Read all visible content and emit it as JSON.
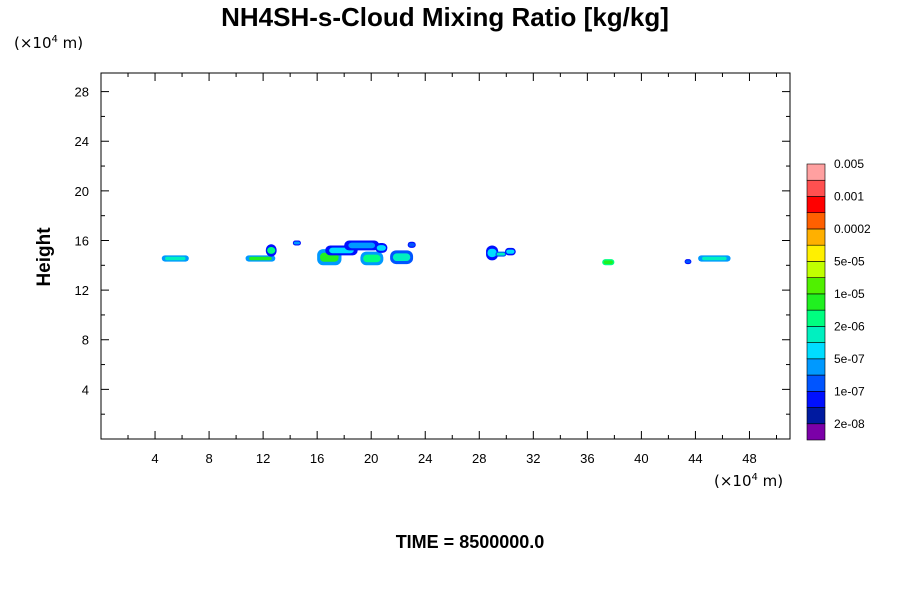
{
  "title": "NH4SH-s-Cloud Mixing Ratio [kg/kg]",
  "y_unit": {
    "prefix": "(×10",
    "exp": "4",
    "suffix": "m)"
  },
  "x_unit": {
    "prefix": "(×10",
    "exp": "4",
    "suffix": "m)"
  },
  "footer": "TIME = 8500000.0",
  "chart_data": {
    "type": "heatmap",
    "title": "NH4SH-s-Cloud Mixing Ratio [kg/kg]",
    "xlabel": "",
    "ylabel": "Height",
    "xlim": [
      0,
      51
    ],
    "ylim": [
      0,
      29.5
    ],
    "x_ticks": [
      4,
      8,
      12,
      16,
      20,
      24,
      28,
      32,
      36,
      40,
      44,
      48
    ],
    "y_ticks": [
      4,
      8,
      12,
      16,
      20,
      24,
      28
    ],
    "grid": false,
    "legend": "colorbar-right",
    "colorbar": {
      "colors": [
        "#7b00a8",
        "#001aa0",
        "#0010ff",
        "#0055ff",
        "#0099ff",
        "#00ddff",
        "#00f0c0",
        "#00ff80",
        "#20f020",
        "#50f000",
        "#c0ff00",
        "#fff000",
        "#ffb000",
        "#ff6000",
        "#ff0000",
        "#ff5050",
        "#ffa0a0"
      ],
      "tick_labels": [
        "2e-08",
        "1e-07",
        "5e-07",
        "2e-06",
        "1e-05",
        "5e-05",
        "0.0002",
        "0.001",
        "0.005"
      ]
    },
    "cloud_patches": [
      {
        "x0": 4.5,
        "x1": 6.5,
        "y0": 14.3,
        "y1": 14.8,
        "colors": [
          "#0099ff",
          "#00f0c0"
        ]
      },
      {
        "x0": 10.7,
        "x1": 12.9,
        "y0": 14.3,
        "y1": 14.8,
        "colors": [
          "#0099ff",
          "#20f020"
        ]
      },
      {
        "x0": 12.2,
        "x1": 13.0,
        "y0": 14.7,
        "y1": 15.7,
        "colors": [
          "#0010ff",
          "#00ff80"
        ]
      },
      {
        "x0": 14.2,
        "x1": 14.8,
        "y0": 15.6,
        "y1": 16.0,
        "colors": [
          "#0010ff",
          "#0099ff"
        ]
      },
      {
        "x0": 16.0,
        "x1": 17.8,
        "y0": 14.0,
        "y1": 15.3,
        "colors": [
          "#0099ff",
          "#20f020"
        ]
      },
      {
        "x0": 16.6,
        "x1": 19.0,
        "y0": 14.8,
        "y1": 15.6,
        "colors": [
          "#0010ff",
          "#00ddff"
        ]
      },
      {
        "x0": 18.0,
        "x1": 20.6,
        "y0": 15.2,
        "y1": 16.0,
        "colors": [
          "#0010ff",
          "#0099ff"
        ]
      },
      {
        "x0": 19.2,
        "x1": 20.9,
        "y0": 14.0,
        "y1": 15.1,
        "colors": [
          "#0099ff",
          "#00ff80"
        ]
      },
      {
        "x0": 20.3,
        "x1": 21.2,
        "y0": 15.0,
        "y1": 15.8,
        "colors": [
          "#0010ff",
          "#00ddff"
        ]
      },
      {
        "x0": 21.4,
        "x1": 23.1,
        "y0": 14.1,
        "y1": 15.2,
        "colors": [
          "#0055ff",
          "#00f0c0"
        ]
      },
      {
        "x0": 22.7,
        "x1": 23.3,
        "y0": 15.4,
        "y1": 15.9,
        "colors": [
          "#0010ff",
          "#0055ff"
        ]
      },
      {
        "x0": 28.5,
        "x1": 29.4,
        "y0": 14.4,
        "y1": 15.6,
        "colors": [
          "#0010ff",
          "#00ddff"
        ]
      },
      {
        "x0": 29.2,
        "x1": 30.0,
        "y0": 14.7,
        "y1": 15.1,
        "colors": [
          "#0055ff",
          "#00f0c0"
        ]
      },
      {
        "x0": 29.9,
        "x1": 30.7,
        "y0": 14.8,
        "y1": 15.4,
        "colors": [
          "#0010ff",
          "#00ddff"
        ]
      },
      {
        "x0": 37.1,
        "x1": 38.0,
        "y0": 14.0,
        "y1": 14.5,
        "colors": [
          "#00ff80",
          "#20f020"
        ]
      },
      {
        "x0": 43.2,
        "x1": 43.7,
        "y0": 14.1,
        "y1": 14.5,
        "colors": [
          "#0010ff",
          "#0055ff"
        ]
      },
      {
        "x0": 44.2,
        "x1": 46.6,
        "y0": 14.3,
        "y1": 14.8,
        "colors": [
          "#0099ff",
          "#00f0c0"
        ]
      }
    ]
  }
}
